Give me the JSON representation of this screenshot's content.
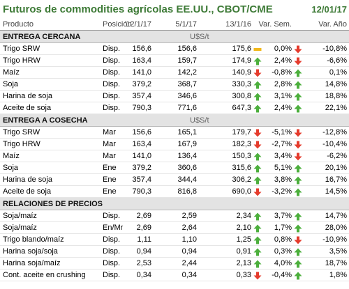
{
  "header": {
    "title": "Futuros de commodities agrícolas EE.UU., CBOT/CME",
    "date": "12/01/17"
  },
  "columns": [
    "Producto",
    "Posición",
    "12/1/17",
    "5/1/17",
    "13/1/16",
    "Var. Sem.",
    "Var. Año"
  ],
  "colors": {
    "title": "#3d7a36",
    "up": "#4caf3c",
    "down": "#e53b2c",
    "flat": "#f2b81b",
    "section_bg": "#e3e3e3"
  },
  "sections": [
    {
      "title": "ENTREGA CERCANA",
      "unit": "U$S/t",
      "rows": [
        {
          "product": "Trigo SRW",
          "position": "Disp.",
          "v1": "156,6",
          "v2": "156,6",
          "v3": "175,6",
          "week_icon": "flat",
          "week": "0,0%",
          "year_icon": "down",
          "year": "-10,8%"
        },
        {
          "product": "Trigo HRW",
          "position": "Disp.",
          "v1": "163,4",
          "v2": "159,7",
          "v3": "174,9",
          "week_icon": "up",
          "week": "2,4%",
          "year_icon": "down",
          "year": "-6,6%"
        },
        {
          "product": "Maíz",
          "position": "Disp.",
          "v1": "141,0",
          "v2": "142,2",
          "v3": "140,9",
          "week_icon": "down",
          "week": "-0,8%",
          "year_icon": "up",
          "year": "0,1%"
        },
        {
          "product": "Soja",
          "position": "Disp.",
          "v1": "379,2",
          "v2": "368,7",
          "v3": "330,3",
          "week_icon": "up",
          "week": "2,8%",
          "year_icon": "up",
          "year": "14,8%"
        },
        {
          "product": "Harina de soja",
          "position": "Disp.",
          "v1": "357,4",
          "v2": "346,6",
          "v3": "300,8",
          "week_icon": "up",
          "week": "3,1%",
          "year_icon": "up",
          "year": "18,8%"
        },
        {
          "product": "Aceite de soja",
          "position": "Disp.",
          "v1": "790,3",
          "v2": "771,6",
          "v3": "647,3",
          "week_icon": "up",
          "week": "2,4%",
          "year_icon": "up",
          "year": "22,1%"
        }
      ]
    },
    {
      "title": "ENTREGA A COSECHA",
      "unit": "U$S/t",
      "rows": [
        {
          "product": "Trigo SRW",
          "position": "Mar",
          "v1": "156,6",
          "v2": "165,1",
          "v3": "179,7",
          "week_icon": "down",
          "week": "-5,1%",
          "year_icon": "down",
          "year": "-12,8%"
        },
        {
          "product": "Trigo HRW",
          "position": "Mar",
          "v1": "163,4",
          "v2": "167,9",
          "v3": "182,3",
          "week_icon": "down",
          "week": "-2,7%",
          "year_icon": "down",
          "year": "-10,4%"
        },
        {
          "product": "Maíz",
          "position": "Mar",
          "v1": "141,0",
          "v2": "136,4",
          "v3": "150,3",
          "week_icon": "up",
          "week": "3,4%",
          "year_icon": "down",
          "year": "-6,2%"
        },
        {
          "product": "Soja",
          "position": "Ene",
          "v1": "379,2",
          "v2": "360,6",
          "v3": "315,6",
          "week_icon": "up",
          "week": "5,1%",
          "year_icon": "up",
          "year": "20,1%"
        },
        {
          "product": "Harina de soja",
          "position": "Ene",
          "v1": "357,4",
          "v2": "344,4",
          "v3": "306,2",
          "week_icon": "up",
          "week": "3,8%",
          "year_icon": "up",
          "year": "16,7%"
        },
        {
          "product": "Aceite de soja",
          "position": "Ene",
          "v1": "790,3",
          "v2": "816,8",
          "v3": "690,0",
          "week_icon": "down",
          "week": "-3,2%",
          "year_icon": "up",
          "year": "14,5%"
        }
      ]
    },
    {
      "title": "RELACIONES DE PRECIOS",
      "unit": "",
      "rows": [
        {
          "product": "Soja/maíz",
          "position": "Disp.",
          "v1": "2,69",
          "v2": "2,59",
          "v3": "2,34",
          "week_icon": "up",
          "week": "3,7%",
          "year_icon": "up",
          "year": "14,7%"
        },
        {
          "product": "Soja/maíz",
          "position": "En/Mr",
          "v1": "2,69",
          "v2": "2,64",
          "v3": "2,10",
          "week_icon": "up",
          "week": "1,7%",
          "year_icon": "up",
          "year": "28,0%"
        },
        {
          "product": "Trigo blando/maíz",
          "position": "Disp.",
          "v1": "1,11",
          "v2": "1,10",
          "v3": "1,25",
          "week_icon": "up",
          "week": "0,8%",
          "year_icon": "down",
          "year": "-10,9%"
        },
        {
          "product": "Harina soja/soja",
          "position": "Disp.",
          "v1": "0,94",
          "v2": "0,94",
          "v3": "0,91",
          "week_icon": "up",
          "week": "0,3%",
          "year_icon": "up",
          "year": "3,5%"
        },
        {
          "product": "Harina soja/maíz",
          "position": "Disp.",
          "v1": "2,53",
          "v2": "2,44",
          "v3": "2,13",
          "week_icon": "up",
          "week": "4,0%",
          "year_icon": "up",
          "year": "18,7%"
        },
        {
          "product": "Cont. aceite en crushing",
          "position": "Disp.",
          "v1": "0,34",
          "v2": "0,34",
          "v3": "0,33",
          "week_icon": "down",
          "week": "-0,4%",
          "year_icon": "up",
          "year": "1,8%"
        }
      ]
    }
  ]
}
